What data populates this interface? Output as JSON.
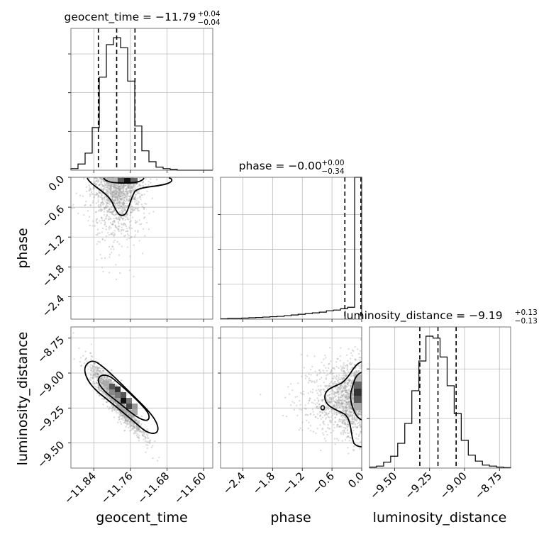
{
  "chart_data": {
    "type": "corner",
    "parameters": [
      "geocent_time",
      "phase",
      "luminosity_distance"
    ],
    "titles": [
      {
        "param": "geocent_time",
        "prefix": "geocent_time = ",
        "value": "−11.79",
        "plus": "+0.04",
        "minus": "−0.04"
      },
      {
        "param": "phase",
        "prefix": "phase = ",
        "value": "−0.00",
        "plus": "+0.00",
        "minus": "−0.34"
      },
      {
        "param": "luminosity_distance",
        "prefix": "luminosity_distance = ",
        "value": "−9.19",
        "plus": "+0.13",
        "minus": "−0.13"
      }
    ],
    "axis_labels": {
      "x": [
        "geocent_time",
        "phase",
        "luminosity_distance"
      ],
      "y": [
        "phase",
        "luminosity_distance"
      ]
    },
    "ranges": {
      "geocent_time": [
        -11.89,
        -11.58
      ],
      "phase": [
        -2.85,
        0.0
      ],
      "luminosity_distance": [
        -9.68,
        -8.67
      ]
    },
    "ticks": {
      "geocent_time": {
        "values": [
          -11.84,
          -11.76,
          -11.68,
          -11.6
        ],
        "labels": [
          "−11.84",
          "−11.76",
          "−11.68",
          "−11.60"
        ]
      },
      "phase": {
        "values": [
          -2.4,
          -1.8,
          -1.2,
          -0.6,
          0.0
        ],
        "labels": [
          "−2.4",
          "−1.8",
          "−1.2",
          "−0.6",
          "0.0"
        ]
      },
      "luminosity_distance": {
        "values": [
          -9.5,
          -9.25,
          -9.0,
          -8.75
        ],
        "labels": [
          "−9.50",
          "−9.25",
          "−9.00",
          "−8.75"
        ]
      }
    },
    "quantiles": {
      "geocent_time": [
        -11.83,
        -11.79,
        -11.75
      ],
      "phase": [
        -0.34,
        -0.0,
        0.0
      ],
      "luminosity_distance": [
        -9.32,
        -9.19,
        -9.06
      ]
    },
    "histograms": {
      "geocent_time": {
        "edges": [
          -11.89,
          -11.8745,
          -11.859,
          -11.8435,
          -11.828,
          -11.8125,
          -11.797,
          -11.7815,
          -11.766,
          -11.7505,
          -11.735,
          -11.7195,
          -11.704,
          -11.6885,
          -11.673,
          -11.6575,
          -11.642,
          -11.6265,
          -11.611,
          -11.5955,
          -11.58
        ],
        "counts": [
          2,
          8,
          22,
          55,
          120,
          162,
          171,
          158,
          115,
          57,
          25,
          11,
          4,
          2,
          1,
          0,
          0,
          0,
          0,
          0
        ]
      },
      "phase": {
        "edges": [
          -2.85,
          -2.7075,
          -2.565,
          -2.4225,
          -2.28,
          -2.1375,
          -1.995,
          -1.8525,
          -1.71,
          -1.5675,
          -1.425,
          -1.2825,
          -1.14,
          -0.9975,
          -0.855,
          -0.7125,
          -0.57,
          -0.4275,
          -0.285,
          -0.1425,
          0.0
        ],
        "counts": [
          0.5,
          1,
          1,
          1.5,
          2,
          2.5,
          3,
          3.5,
          4,
          5,
          6,
          7,
          8,
          9,
          10,
          12,
          13,
          15,
          17,
          380
        ]
      },
      "luminosity_distance": {
        "edges": [
          -9.68,
          -9.6295,
          -9.579,
          -9.5285,
          -9.478,
          -9.4275,
          -9.377,
          -9.3265,
          -9.276,
          -9.2255,
          -9.175,
          -9.1245,
          -9.074,
          -9.0235,
          -8.973,
          -8.9225,
          -8.872,
          -8.8215,
          -8.771,
          -8.7205,
          -8.67
        ],
        "counts": [
          1,
          2,
          6,
          12,
          25,
          45,
          78,
          108,
          133,
          131,
          112,
          83,
          55,
          28,
          13,
          7,
          3,
          2,
          1,
          0.5
        ]
      }
    },
    "grid": true,
    "color": "#000000",
    "scatter_color": "#9a9a9a"
  }
}
